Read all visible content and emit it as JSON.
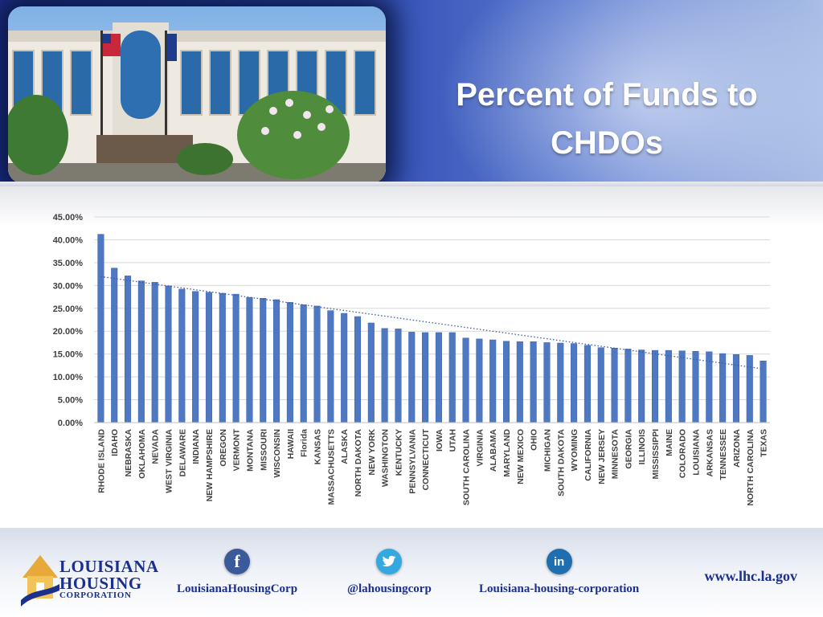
{
  "header": {
    "title_line1": "Percent of Funds to",
    "title_line2": "CHDOs"
  },
  "colors": {
    "bar": "#4f78c2",
    "bar_stroke": "#3a63ad",
    "trend": "#3c5aa6",
    "header_dark": "#1b2f8c",
    "footer_text": "#1b2f8c"
  },
  "chart_data": {
    "type": "bar",
    "title": "",
    "xlabel": "",
    "ylabel": "",
    "ylim": [
      0,
      45
    ],
    "yticks": [
      "0.00%",
      "5.00%",
      "10.00%",
      "15.00%",
      "20.00%",
      "25.00%",
      "30.00%",
      "35.00%",
      "40.00%",
      "45.00%"
    ],
    "grid": true,
    "trendline": "linear",
    "categories": [
      "RHODE ISLAND",
      "IDAHO",
      "NEBRASKA",
      "OKLAHOMA",
      "NEVADA",
      "WEST VIRGINIA",
      "DELAWARE",
      "INDIANA",
      "NEW HAMPSHIRE",
      "OREGON",
      "VERMONT",
      "MONTANA",
      "MISSOURI",
      "WISCONSIN",
      "HAWAII",
      "Florida",
      "KANSAS",
      "MASSACHUSETTS",
      "ALASKA",
      "NORTH DAKOTA",
      "NEW YORK",
      "WASHINGTON",
      "KENTUCKY",
      "PENNSYLVANIA",
      "CONNECTICUT",
      "IOWA",
      "UTAH",
      "SOUTH CAROLINA",
      "VIRGINIA",
      "ALABAMA",
      "MARYLAND",
      "NEW MEXICO",
      "OHIO",
      "MICHIGAN",
      "SOUTH DAKOTA",
      "WYOMING",
      "CALIFORNIA",
      "NEW JERSEY",
      "MINNESOTA",
      "GEORGIA",
      "ILLINOIS",
      "MISSISSIPPI",
      "MAINE",
      "COLORADO",
      "LOUISIANA",
      "ARKANSAS",
      "TENNESSEE",
      "ARIZONA",
      "NORTH CAROLINA",
      "TEXAS"
    ],
    "values": [
      41.2,
      33.8,
      32.1,
      31.0,
      30.7,
      29.9,
      29.2,
      28.7,
      28.5,
      28.3,
      28.1,
      27.4,
      27.2,
      26.9,
      26.3,
      25.8,
      25.5,
      24.5,
      23.9,
      23.2,
      21.8,
      20.6,
      20.5,
      19.8,
      19.7,
      19.7,
      19.7,
      18.5,
      18.3,
      18.1,
      17.8,
      17.7,
      17.7,
      17.5,
      17.4,
      17.3,
      16.9,
      16.4,
      16.3,
      16.1,
      15.9,
      15.8,
      15.8,
      15.7,
      15.6,
      15.5,
      15.1,
      14.9,
      14.7,
      13.5
    ]
  },
  "footer": {
    "logo_line1": "LOUISIANA",
    "logo_line2": "HOUSING",
    "logo_line3": "CORPORATION",
    "facebook_icon": "f",
    "facebook_label": "LouisianaHousingCorp",
    "twitter_label": "@lahousingcorp",
    "linkedin_icon": "in",
    "linkedin_label": "Louisiana-housing-corporation",
    "website": "www.lhc.la.gov"
  }
}
